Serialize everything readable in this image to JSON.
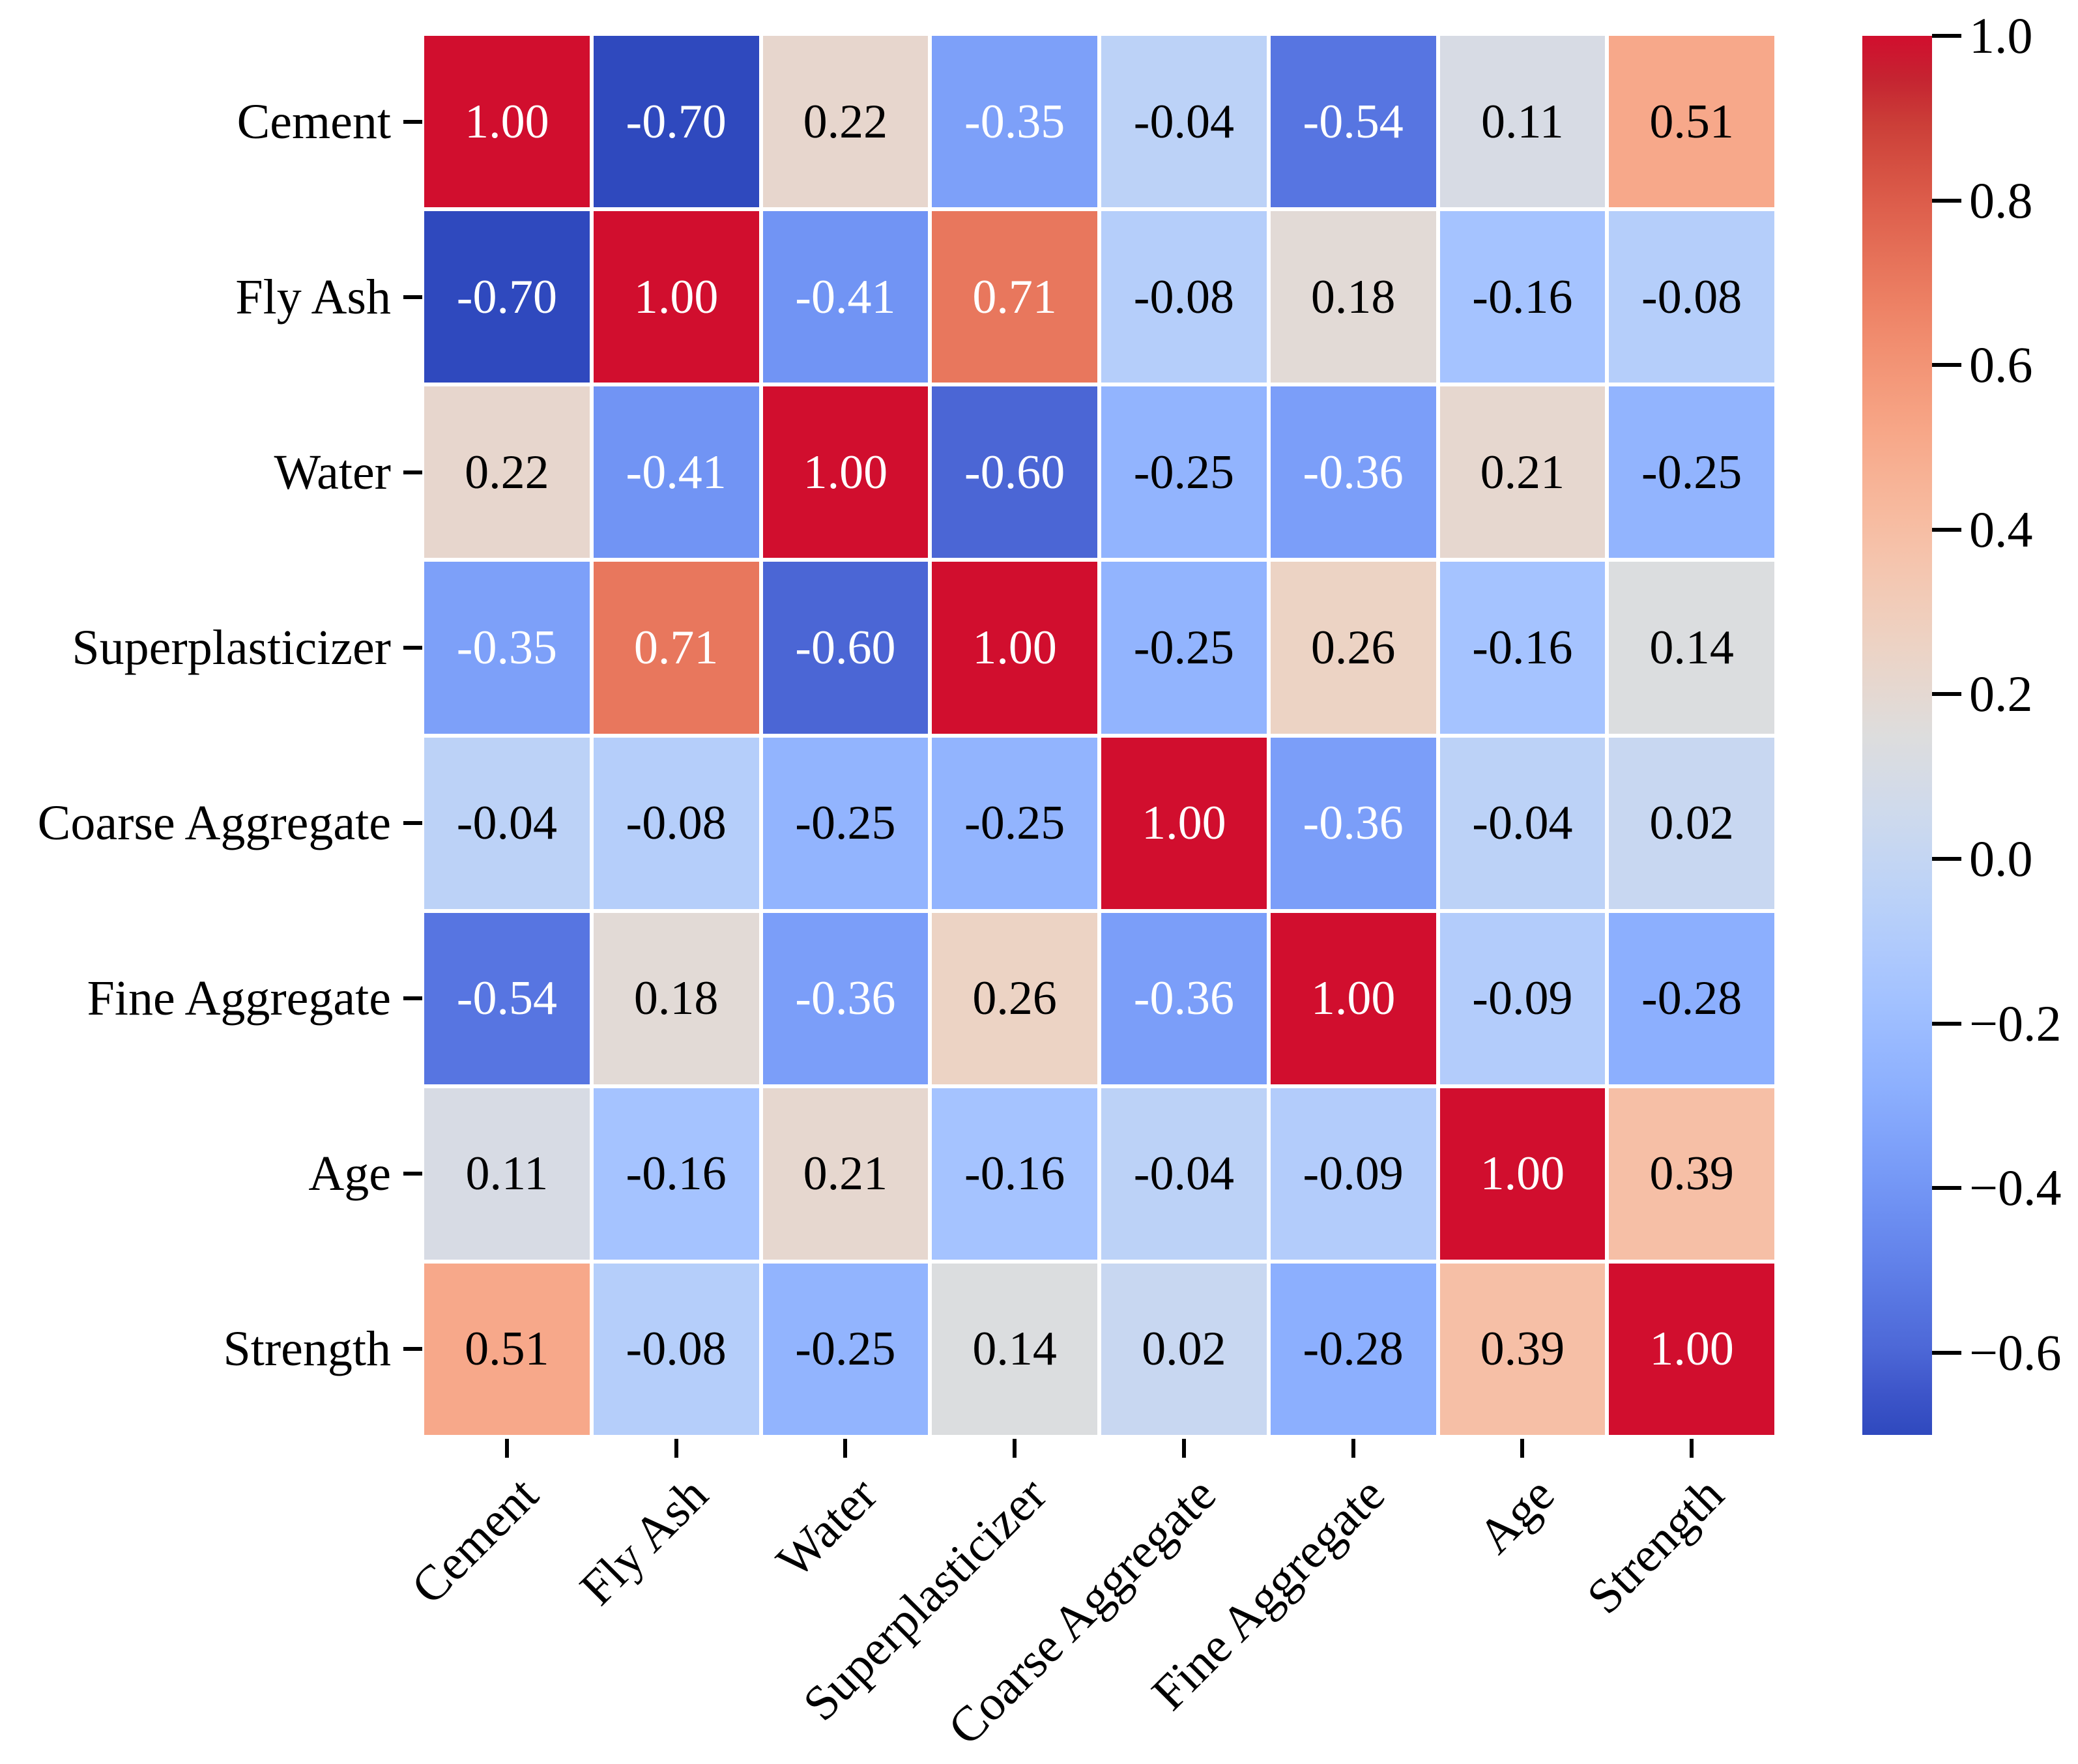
{
  "figure": {
    "background_color": "#ffffff",
    "text_color": "#000000"
  },
  "chart_data": {
    "type": "heatmap",
    "title": "",
    "xlabel": "",
    "ylabel": "",
    "x_categories": [
      "Cement",
      "Fly Ash",
      "Water",
      "Superplasticizer",
      "Coarse Aggregate",
      "Fine Aggregate",
      "Age",
      "Strength"
    ],
    "y_categories": [
      "Cement",
      "Fly Ash",
      "Water",
      "Superplasticizer",
      "Coarse Aggregate",
      "Fine Aggregate",
      "Age",
      "Strength"
    ],
    "values": [
      [
        1.0,
        -0.7,
        0.22,
        -0.35,
        -0.04,
        -0.54,
        0.11,
        0.51
      ],
      [
        -0.7,
        1.0,
        -0.41,
        0.71,
        -0.08,
        0.18,
        -0.16,
        -0.08
      ],
      [
        0.22,
        -0.41,
        1.0,
        -0.6,
        -0.25,
        -0.36,
        0.21,
        -0.25
      ],
      [
        -0.35,
        0.71,
        -0.6,
        1.0,
        -0.25,
        0.26,
        -0.16,
        0.14
      ],
      [
        -0.04,
        -0.08,
        -0.25,
        -0.25,
        1.0,
        -0.36,
        -0.04,
        0.02
      ],
      [
        -0.54,
        0.18,
        -0.36,
        0.26,
        -0.36,
        1.0,
        -0.09,
        -0.28
      ],
      [
        0.11,
        -0.16,
        0.21,
        -0.16,
        -0.04,
        -0.09,
        1.0,
        0.39
      ],
      [
        0.51,
        -0.08,
        -0.25,
        0.14,
        0.02,
        -0.28,
        0.39,
        1.0
      ]
    ],
    "annotations": true,
    "annotation_decimals": 2,
    "grid": false,
    "x_tick_rotation": 45,
    "colormap": "coolwarm",
    "vmin": -0.7,
    "vmax": 1.0,
    "cell_gap_color": "#ffffff",
    "annotation_light_text": "#ffffff",
    "annotation_dark_text": "#000000",
    "colorbar": {
      "position": "right",
      "top_color": "#d10e2e",
      "center_color": "#dddddd",
      "bottom_color": "#2f49be",
      "tick_values": [
        1.0,
        0.8,
        0.6,
        0.4,
        0.2,
        0.0,
        -0.2,
        -0.4,
        -0.6
      ],
      "tick_labels": [
        "1.0",
        "0.8",
        "0.6",
        "0.4",
        "0.2",
        "0.0",
        "−0.2",
        "−0.4",
        "−0.6"
      ]
    }
  }
}
